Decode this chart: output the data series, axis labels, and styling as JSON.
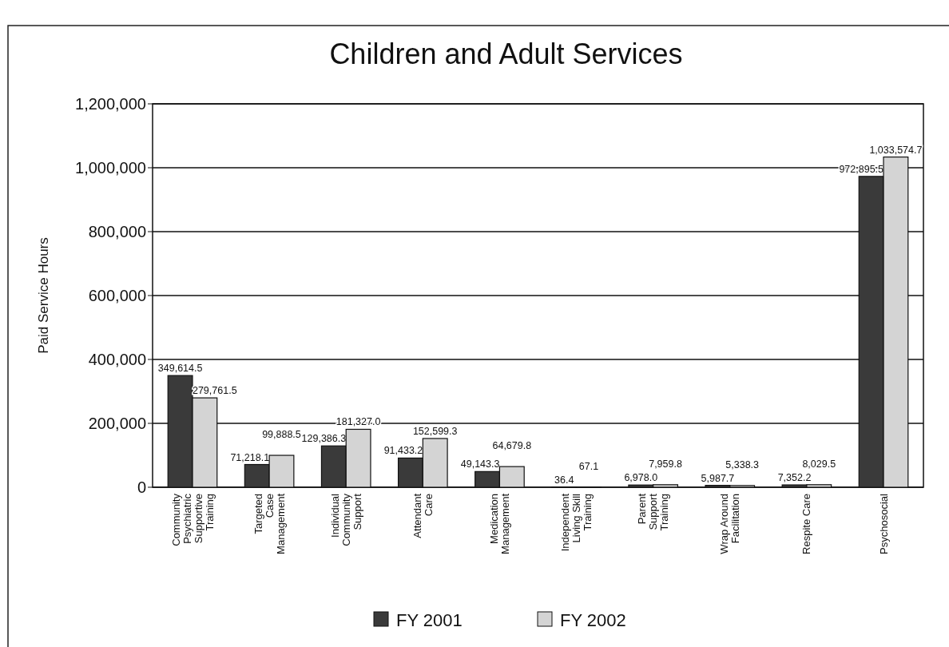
{
  "chart_data": {
    "type": "bar",
    "title": "Children and Adult Services",
    "ylabel": "Paid Service Hours",
    "categories": [
      "Community Psychiatric Supportive Training",
      "Targeted Case Management",
      "Individual Community Support",
      "Attendant Care",
      "Medication Management",
      "Independent Living Skill Training",
      "Parent Support Training",
      "Wrap Around Facilitation",
      "Respite Care",
      "Psychosocial"
    ],
    "series": [
      {
        "name": "FY 2001",
        "color": "#3a3a3a",
        "values": [
          349614.5,
          71218.1,
          129386.3,
          91433.2,
          49143.3,
          36.4,
          6978.0,
          5987.7,
          7352.2,
          972895.5
        ],
        "value_labels": [
          "349,614.5",
          "71,218.1",
          "129,386.3",
          "91,433.2",
          "49,143.3",
          "36.4",
          "6,978.0",
          "5,987.7",
          "7,352.2",
          "972,895.5"
        ]
      },
      {
        "name": "FY 2002",
        "color": "#d4d4d4",
        "values": [
          279761.5,
          99888.5,
          181327.0,
          152599.3,
          64679.8,
          67.1,
          7959.8,
          5338.3,
          8029.5,
          1033574.7
        ],
        "value_labels": [
          "279,761.5",
          "99,888.5",
          "181,327.0",
          "152,599.3",
          "64,679.8",
          "67.1",
          "7,959.8",
          "5,338.3",
          "8,029.5",
          "1,033,574.7"
        ]
      }
    ],
    "ylim": [
      0,
      1200000
    ],
    "yticks": [
      {
        "value": 0,
        "label": "0"
      },
      {
        "value": 200000,
        "label": "200,000"
      },
      {
        "value": 400000,
        "label": "400,000"
      },
      {
        "value": 600000,
        "label": "600,000"
      },
      {
        "value": 800000,
        "label": "800,000"
      },
      {
        "value": 1000000,
        "label": "1,000,000"
      },
      {
        "value": 1200000,
        "label": "1,200,000"
      }
    ],
    "grid": "y",
    "legend": "bottom"
  }
}
